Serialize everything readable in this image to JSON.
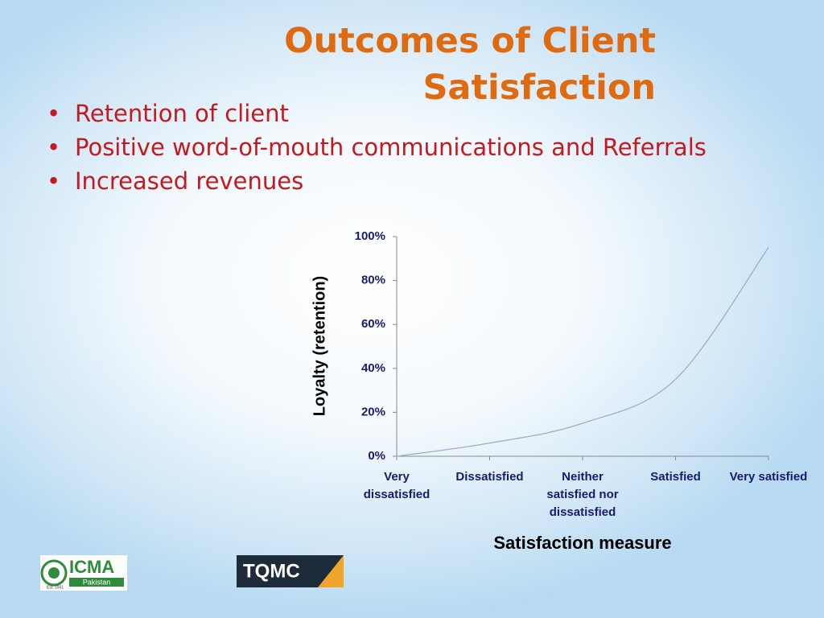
{
  "header": {
    "title": "Outcomes of Client Satisfaction"
  },
  "bullets": [
    "Retention of client",
    "Positive word-of-mouth communications and Referrals",
    "Increased revenues"
  ],
  "chart_data": {
    "type": "line",
    "categories": [
      "Very dissatisfied",
      "Dissatisfied",
      "Neither satisfied nor dissatisfied",
      "Satisfied",
      "Very satisfied"
    ],
    "series": [
      {
        "name": "Loyalty",
        "color": "#a3abc4",
        "values": [
          0,
          6,
          15,
          35,
          95
        ]
      }
    ],
    "ylim": [
      0,
      100
    ],
    "yticks": [
      {
        "value": 0,
        "label": "0%"
      },
      {
        "value": 20,
        "label": "20%"
      },
      {
        "value": 40,
        "label": "40%"
      },
      {
        "value": 60,
        "label": "60%"
      },
      {
        "value": 80,
        "label": "80%"
      },
      {
        "value": 100,
        "label": "100%"
      }
    ],
    "y_label": "Loyalty (retention)",
    "x_label": "Satisfaction measure",
    "grid": false,
    "smooth": true
  },
  "logos": {
    "icma": "ICMA",
    "icma_sub": "Pakistan",
    "icma_est": "Est. 1951",
    "tqmc": "TQMC"
  }
}
